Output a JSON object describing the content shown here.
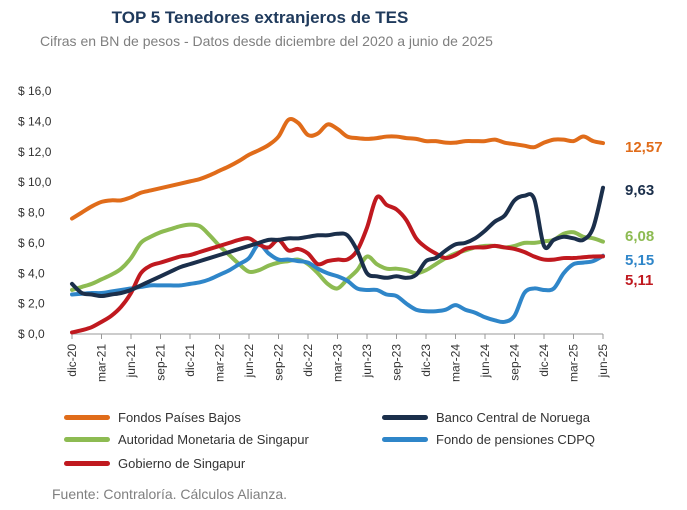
{
  "chart_data": {
    "type": "line",
    "title": "TOP 5 Tenedores extranjeros de TES",
    "subtitle": "Cifras en BN de pesos  - Datos desde diciembre del 2020 a junio de 2025",
    "xlabel": "",
    "ylabel": "",
    "ylim": [
      0,
      16
    ],
    "y_ticks": [
      "$ 0,0",
      "$ 2,0",
      "$ 4,0",
      "$ 6,0",
      "$ 8,0",
      "$ 10,0",
      "$ 12,0",
      "$ 14,0",
      "$ 16,0"
    ],
    "x_months": [
      "dic-20",
      "ene-21",
      "feb-21",
      "mar-21",
      "abr-21",
      "may-21",
      "jun-21",
      "jul-21",
      "ago-21",
      "sep-21",
      "oct-21",
      "nov-21",
      "dic-21",
      "ene-22",
      "feb-22",
      "mar-22",
      "abr-22",
      "may-22",
      "jun-22",
      "jul-22",
      "ago-22",
      "sep-22",
      "oct-22",
      "nov-22",
      "dic-22",
      "ene-23",
      "feb-23",
      "mar-23",
      "abr-23",
      "may-23",
      "jun-23",
      "jul-23",
      "ago-23",
      "sep-23",
      "oct-23",
      "nov-23",
      "dic-23",
      "ene-24",
      "feb-24",
      "mar-24",
      "abr-24",
      "may-24",
      "jun-24",
      "jul-24",
      "ago-24",
      "sep-24",
      "oct-24",
      "nov-24",
      "dic-24",
      "ene-25",
      "feb-25",
      "mar-25",
      "abr-25",
      "may-25",
      "jun-25"
    ],
    "x_tick_labels": [
      "dic-20",
      "mar-21",
      "jun-21",
      "sep-21",
      "dic-21",
      "mar-22",
      "jun-22",
      "sep-22",
      "dic-22",
      "mar-23",
      "jun-23",
      "sep-23",
      "dic-23",
      "mar-24",
      "jun-24",
      "sep-24",
      "dic-24",
      "mar-25",
      "jun-25"
    ],
    "grid": false,
    "series": [
      {
        "name": "Fondos Países Bajos",
        "color": "#e06c1a",
        "final_label": "12,57",
        "values": [
          7.6,
          8.0,
          8.4,
          8.7,
          8.8,
          8.8,
          9.0,
          9.3,
          9.45,
          9.6,
          9.75,
          9.9,
          10.05,
          10.2,
          10.45,
          10.75,
          11.05,
          11.4,
          11.8,
          12.1,
          12.45,
          13.0,
          14.1,
          13.9,
          13.1,
          13.2,
          13.8,
          13.5,
          13.0,
          12.9,
          12.85,
          12.9,
          13.0,
          13.0,
          12.9,
          12.85,
          12.7,
          12.7,
          12.6,
          12.6,
          12.7,
          12.7,
          12.7,
          12.8,
          12.6,
          12.5,
          12.4,
          12.3,
          12.6,
          12.8,
          12.8,
          12.7,
          13.0,
          12.7,
          12.57
        ]
      },
      {
        "name": "Banco Central de Noruega",
        "color": "#1b2f4b",
        "final_label": "9,63",
        "values": [
          3.3,
          2.7,
          2.6,
          2.5,
          2.6,
          2.7,
          2.9,
          3.2,
          3.5,
          3.8,
          4.1,
          4.4,
          4.6,
          4.8,
          5.0,
          5.2,
          5.4,
          5.6,
          5.8,
          6.0,
          6.2,
          6.2,
          6.3,
          6.3,
          6.4,
          6.5,
          6.5,
          6.6,
          6.5,
          5.5,
          4.0,
          3.8,
          3.7,
          3.8,
          3.7,
          3.9,
          4.8,
          5.0,
          5.5,
          5.9,
          6.0,
          6.3,
          6.8,
          7.4,
          7.8,
          8.8,
          9.1,
          8.9,
          5.8,
          6.2,
          6.4,
          6.3,
          6.2,
          7.0,
          9.63
        ]
      },
      {
        "name": "Autoridad Monetaria de Singapur",
        "color": "#8dbb52",
        "final_label": "6,08",
        "values": [
          2.9,
          3.1,
          3.3,
          3.6,
          3.9,
          4.3,
          5.0,
          6.0,
          6.4,
          6.7,
          6.9,
          7.1,
          7.2,
          7.1,
          6.5,
          5.8,
          5.2,
          4.6,
          4.1,
          4.2,
          4.5,
          4.7,
          4.8,
          4.9,
          4.6,
          4.0,
          3.3,
          3.0,
          3.6,
          4.2,
          5.1,
          4.6,
          4.3,
          4.3,
          4.2,
          4.0,
          4.2,
          4.6,
          5.0,
          5.3,
          5.5,
          5.7,
          5.8,
          5.8,
          5.7,
          5.8,
          6.0,
          6.0,
          6.1,
          6.2,
          6.6,
          6.7,
          6.4,
          6.3,
          6.08
        ]
      },
      {
        "name": "Fondo de pensiones CDPQ",
        "color": "#2f86c9",
        "final_label": "5,15",
        "values": [
          2.6,
          2.65,
          2.7,
          2.7,
          2.8,
          2.9,
          3.0,
          3.1,
          3.2,
          3.2,
          3.2,
          3.2,
          3.3,
          3.4,
          3.6,
          3.9,
          4.2,
          4.6,
          5.0,
          5.9,
          5.3,
          4.9,
          4.9,
          4.8,
          4.7,
          4.3,
          4.0,
          3.8,
          3.5,
          3.0,
          2.9,
          2.9,
          2.6,
          2.5,
          2.0,
          1.6,
          1.5,
          1.5,
          1.6,
          1.9,
          1.6,
          1.4,
          1.1,
          0.9,
          0.8,
          1.2,
          2.7,
          3.0,
          2.9,
          3.0,
          4.0,
          4.6,
          4.7,
          4.8,
          5.15
        ]
      },
      {
        "name": "Gobierno de Singapur",
        "color": "#c0191f",
        "final_label": "5,11",
        "values": [
          0.1,
          0.25,
          0.45,
          0.8,
          1.2,
          1.8,
          2.7,
          4.0,
          4.5,
          4.7,
          4.9,
          5.1,
          5.2,
          5.4,
          5.6,
          5.8,
          6.0,
          6.2,
          6.3,
          5.9,
          5.7,
          6.2,
          5.5,
          5.6,
          5.3,
          4.6,
          4.8,
          4.9,
          4.9,
          5.5,
          7.0,
          9.0,
          8.5,
          8.2,
          7.5,
          6.3,
          5.7,
          5.3,
          5.0,
          5.2,
          5.6,
          5.7,
          5.7,
          5.8,
          5.7,
          5.6,
          5.4,
          5.1,
          4.9,
          4.9,
          5.0,
          5.0,
          5.05,
          5.1,
          5.11
        ]
      }
    ],
    "source": "Fuente:  Contraloría. Cálculos Alianza."
  }
}
